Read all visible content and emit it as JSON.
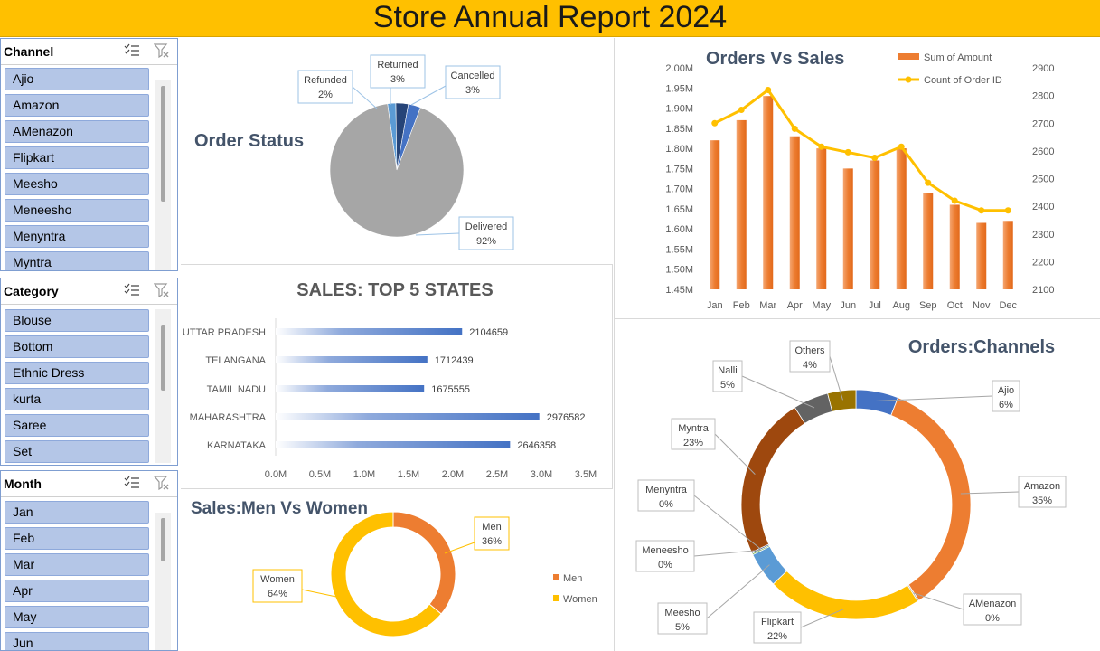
{
  "header": {
    "title": "Store Annual Report 2024"
  },
  "slicers": {
    "channel": {
      "title": "Channel",
      "items": [
        "Ajio",
        "Amazon",
        "AMenazon",
        "Flipkart",
        "Meesho",
        "Meneesho",
        "Menyntra",
        "Myntra"
      ]
    },
    "category": {
      "title": "Category",
      "items": [
        "Blouse",
        "Bottom",
        "Ethnic Dress",
        "kurta",
        "Saree",
        "Set"
      ]
    },
    "month": {
      "title": "Month",
      "items": [
        "Jan",
        "Feb",
        "Mar",
        "Apr",
        "May",
        "Jun"
      ]
    }
  },
  "icons": {
    "multi_select": "multi-select-icon",
    "clear_filter": "clear-filter-icon"
  },
  "chart_data": [
    {
      "id": "order_status",
      "type": "pie",
      "title": "Order Status",
      "slices": [
        {
          "label": "Delivered",
          "value": 92,
          "pct_label": "92%",
          "color": "#a6a6a6"
        },
        {
          "label": "Refunded",
          "value": 2,
          "pct_label": "2%",
          "color": "#5b9bd5"
        },
        {
          "label": "Returned",
          "value": 3,
          "pct_label": "3%",
          "color": "#264478"
        },
        {
          "label": "Cancelled",
          "value": 3,
          "pct_label": "3%",
          "color": "#4472c4"
        }
      ]
    },
    {
      "id": "orders_vs_sales",
      "type": "bar",
      "title": "Orders Vs Sales",
      "categories": [
        "Jan",
        "Feb",
        "Mar",
        "Apr",
        "May",
        "Jun",
        "Jul",
        "Aug",
        "Sep",
        "Oct",
        "Nov",
        "Dec"
      ],
      "series": [
        {
          "name": "Sum of Amount",
          "type": "bar",
          "axis": "left",
          "color": "#ed7d31",
          "values": [
            1.82,
            1.87,
            1.93,
            1.83,
            1.8,
            1.75,
            1.77,
            1.8,
            1.69,
            1.66,
            1.615,
            1.62
          ]
        },
        {
          "name": "Count of Order ID",
          "type": "line",
          "axis": "right",
          "color": "#ffc000",
          "values": [
            2700,
            2748,
            2820,
            2680,
            2615,
            2595,
            2575,
            2615,
            2485,
            2420,
            2385,
            2385
          ]
        }
      ],
      "left_axis": {
        "min": 1.45,
        "max": 2.0,
        "ticks": [
          "1.45M",
          "1.50M",
          "1.55M",
          "1.60M",
          "1.65M",
          "1.70M",
          "1.75M",
          "1.80M",
          "1.85M",
          "1.90M",
          "1.95M",
          "2.00M"
        ]
      },
      "right_axis": {
        "min": 2100,
        "max": 2900,
        "ticks": [
          "2100",
          "2200",
          "2300",
          "2400",
          "2500",
          "2600",
          "2700",
          "2800",
          "2900"
        ]
      },
      "legend_position": "top-right"
    },
    {
      "id": "top5_states",
      "type": "bar",
      "orientation": "horizontal",
      "title": "SALES: TOP 5 STATES",
      "categories": [
        "UTTAR PRADESH",
        "TELANGANA",
        "TAMIL NADU",
        "MAHARASHTRA",
        "KARNATAKA"
      ],
      "values": [
        2104659,
        1712439,
        1675555,
        2976582,
        2646358
      ],
      "value_labels": [
        "2104659",
        "1712439",
        "1675555",
        "2976582",
        "2646358"
      ],
      "xlim": [
        0,
        3500000
      ],
      "x_ticks": [
        "0.0M",
        "0.5M",
        "1.0M",
        "1.5M",
        "2.0M",
        "2.5M",
        "3.0M",
        "3.5M"
      ],
      "color": "#4472c4"
    },
    {
      "id": "men_vs_women",
      "type": "pie",
      "donut": true,
      "title": "Sales:Men Vs Women",
      "slices": [
        {
          "label": "Men",
          "value": 36,
          "pct_label": "36%",
          "color": "#ed7d31"
        },
        {
          "label": "Women",
          "value": 64,
          "pct_label": "64%",
          "color": "#ffc000"
        }
      ],
      "legend": [
        "Men",
        "Women"
      ],
      "legend_position": "right"
    },
    {
      "id": "orders_channels",
      "type": "pie",
      "donut": true,
      "title": "Orders:Channels",
      "slices": [
        {
          "label": "Ajio",
          "value": 6,
          "pct_label": "6%",
          "color": "#4472c4"
        },
        {
          "label": "Amazon",
          "value": 35,
          "pct_label": "35%",
          "color": "#ed7d31"
        },
        {
          "label": "AMenazon",
          "value": 0.2,
          "pct_label": "0%",
          "color": "#a5a5a5"
        },
        {
          "label": "Flipkart",
          "value": 22,
          "pct_label": "22%",
          "color": "#ffc000"
        },
        {
          "label": "Meesho",
          "value": 5,
          "pct_label": "5%",
          "color": "#5b9bd5"
        },
        {
          "label": "Meneesho",
          "value": 0.2,
          "pct_label": "0%",
          "color": "#70ad47"
        },
        {
          "label": "Menyntra",
          "value": 0.2,
          "pct_label": "0%",
          "color": "#264478"
        },
        {
          "label": "Myntra",
          "value": 23,
          "pct_label": "23%",
          "color": "#9e480e"
        },
        {
          "label": "Nalli",
          "value": 5,
          "pct_label": "5%",
          "color": "#636363"
        },
        {
          "label": "Others",
          "value": 4,
          "pct_label": "4%",
          "color": "#997300"
        }
      ]
    }
  ]
}
